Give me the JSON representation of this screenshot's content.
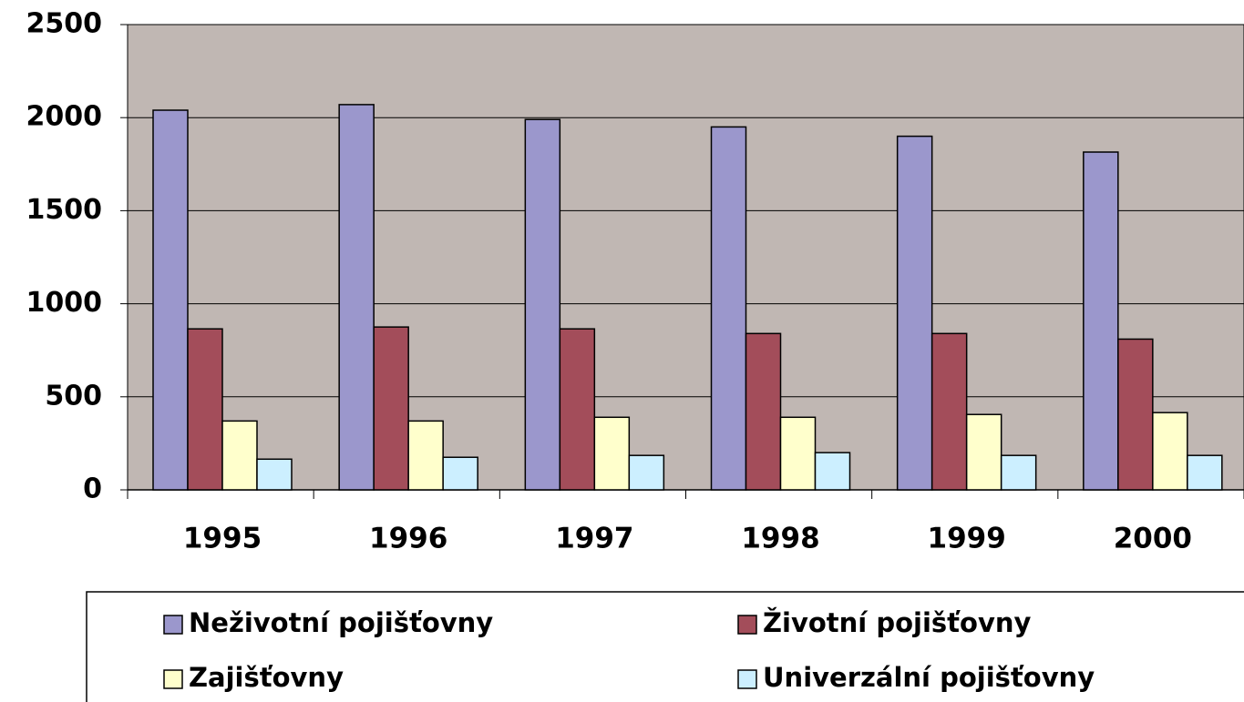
{
  "chart_data": {
    "type": "bar",
    "categories": [
      "1995",
      "1996",
      "1997",
      "1998",
      "1999",
      "2000"
    ],
    "series": [
      {
        "name": "Neživotní pojišťovny",
        "color": "#9b97cc",
        "values": [
          2040,
          2070,
          1990,
          1950,
          1900,
          1815
        ]
      },
      {
        "name": "Životní pojišťovny",
        "color": "#a34d5a",
        "values": [
          865,
          875,
          865,
          840,
          840,
          810
        ]
      },
      {
        "name": "Zajišťovny",
        "color": "#ffffcc",
        "values": [
          370,
          370,
          390,
          390,
          405,
          415
        ]
      },
      {
        "name": "Univerzální pojišťovny",
        "color": "#ccefff",
        "values": [
          165,
          175,
          185,
          200,
          185,
          185
        ]
      }
    ],
    "ylim": [
      0,
      2500
    ],
    "yticks": [
      0,
      500,
      1000,
      1500,
      2000,
      2500
    ],
    "grid": true,
    "plot_background": "#c0b7b3",
    "legend": "bottom"
  }
}
